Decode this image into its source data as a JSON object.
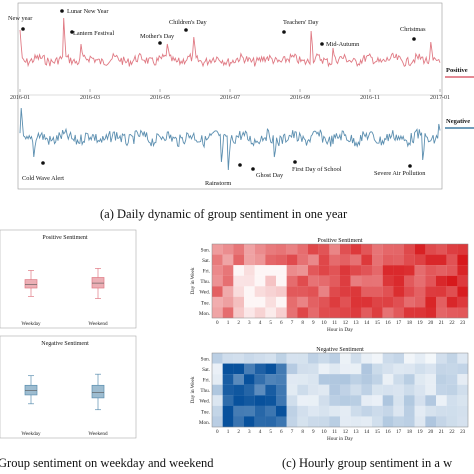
{
  "chart_data": [
    {
      "type": "line",
      "title": "",
      "x_tick_labels": [
        "2016-01",
        "2016-03",
        "2016-05",
        "2016-07",
        "2016-09",
        "2016-11",
        "2017-01"
      ],
      "series": [
        {
          "name": "Positive",
          "color": "#e07a84",
          "annotations": [
            "New year",
            "Lunar New Year",
            "Lantern Festival",
            "Mother's Day",
            "Children's Day",
            "Teachers' Day",
            "Mid-Autumn",
            "Christmas"
          ]
        },
        {
          "name": "Negative",
          "color": "#5c8fb0",
          "annotations": [
            "Cold Wave Alert",
            "Rainstorm",
            "Ghost Day",
            "First Day of School",
            "Severe Air Pollution"
          ]
        }
      ],
      "caption": "(a) Daily dynamic of group sentiment in one year"
    },
    {
      "type": "box",
      "panels": [
        {
          "title": "Positive Sentiment",
          "categories": [
            "Weekday",
            "Weekend"
          ],
          "color": "#e07a84",
          "boxes": [
            {
              "q1": 0.4,
              "median": 0.45,
              "q3": 0.52,
              "whisker_low": 0.28,
              "whisker_high": 0.65
            },
            {
              "q1": 0.4,
              "median": 0.47,
              "q3": 0.55,
              "whisker_low": 0.25,
              "whisker_high": 0.68
            }
          ]
        },
        {
          "title": "Negative Sentiment",
          "categories": [
            "Weekday",
            "Weekend"
          ],
          "color": "#5c8fb0",
          "boxes": [
            {
              "q1": 0.42,
              "median": 0.48,
              "q3": 0.55,
              "whisker_low": 0.3,
              "whisker_high": 0.68
            },
            {
              "q1": 0.38,
              "median": 0.45,
              "q3": 0.55,
              "whisker_low": 0.22,
              "whisker_high": 0.7
            }
          ]
        }
      ],
      "caption": "Group sentiment on weekday and weekend"
    },
    {
      "type": "heatmap",
      "panels": [
        {
          "title": "Positive Sentiment",
          "xlabel": "Hour in Day",
          "ylabel": "Day in Week",
          "color": "#d7191c"
        },
        {
          "title": "Negative Sentiment",
          "xlabel": "Hour in Day",
          "ylabel": "Day in Week",
          "color": "#08519c"
        }
      ],
      "days": [
        "Sun.",
        "Sat.",
        "Fri.",
        "Thu.",
        "Wed.",
        "Tue.",
        "Mon."
      ],
      "hours": [
        "0",
        "1",
        "2",
        "3",
        "4",
        "5",
        "6",
        "7",
        "8",
        "9",
        "10",
        "11",
        "12",
        "13",
        "14",
        "15",
        "16",
        "17",
        "18",
        "19",
        "20",
        "21",
        "22",
        "23"
      ],
      "caption": "(c) Hourly group sentiment in a w"
    }
  ]
}
